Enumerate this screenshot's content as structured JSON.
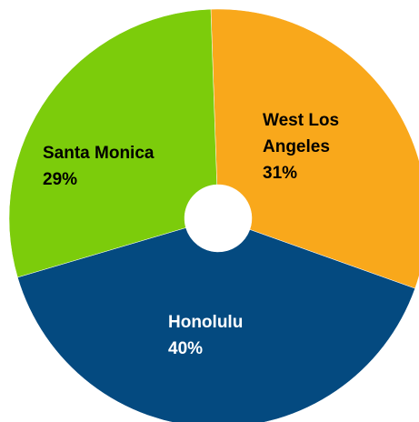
{
  "chart_data": {
    "type": "pie",
    "donut": true,
    "categories": [
      "West Los Angeles",
      "Honolulu",
      "Santa Monica"
    ],
    "values": [
      31,
      40,
      29
    ],
    "value_labels": [
      "31%",
      "40%",
      "29%"
    ],
    "colors": [
      "#f9a81b",
      "#044a80",
      "#7ccc0b"
    ]
  }
}
